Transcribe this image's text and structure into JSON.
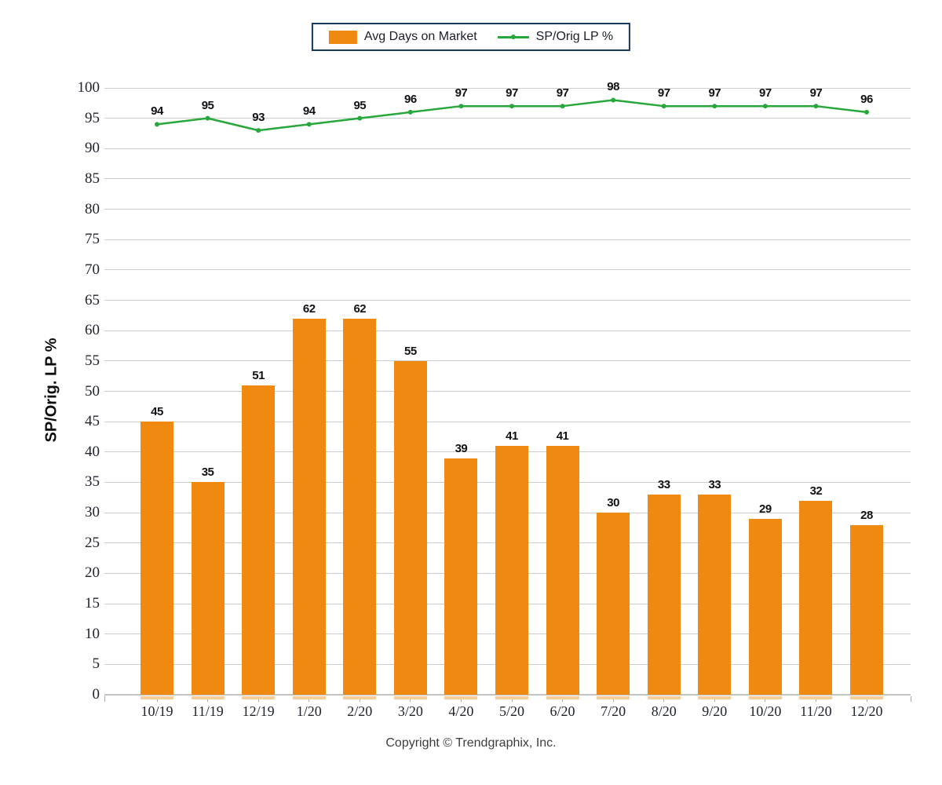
{
  "legend": {
    "border_color": "#17375E"
  },
  "y_axis": {
    "title": "SP/Orig. LP %",
    "min": 0,
    "max": 100,
    "step": 5
  },
  "footer": {
    "copyright": "Copyright © Trendgraphix, Inc."
  },
  "colors": {
    "bar": "#F0890F",
    "bar_base": "#F6CC99",
    "line": "#28A83C",
    "grid": "#CDCDCD",
    "axis": "#C4C4C4",
    "tick": "#A6A6A6",
    "value_text": "#101114",
    "axis_text": "#21242E",
    "legend_border": "#17375E"
  },
  "chart_data": {
    "type": "bar",
    "categories": [
      "10/19",
      "11/19",
      "12/19",
      "1/20",
      "2/20",
      "3/20",
      "4/20",
      "5/20",
      "6/20",
      "7/20",
      "8/20",
      "9/20",
      "10/20",
      "11/20",
      "12/20"
    ],
    "series": [
      {
        "name": "Avg Days on Market",
        "type": "bar",
        "color": "#F0890F",
        "values": [
          45,
          35,
          51,
          62,
          62,
          55,
          39,
          41,
          41,
          30,
          33,
          33,
          29,
          32,
          28
        ]
      },
      {
        "name": "SP/Orig LP %",
        "type": "line",
        "color": "#28A83C",
        "values": [
          94,
          95,
          93,
          94,
          95,
          96,
          97,
          97,
          97,
          98,
          97,
          97,
          97,
          97,
          96
        ]
      }
    ],
    "title": "",
    "xlabel": "",
    "ylabel": "SP/Orig. LP %",
    "ylim": [
      0,
      100
    ],
    "ytick_step": 5,
    "grid": true,
    "legend_position": "top-center"
  }
}
